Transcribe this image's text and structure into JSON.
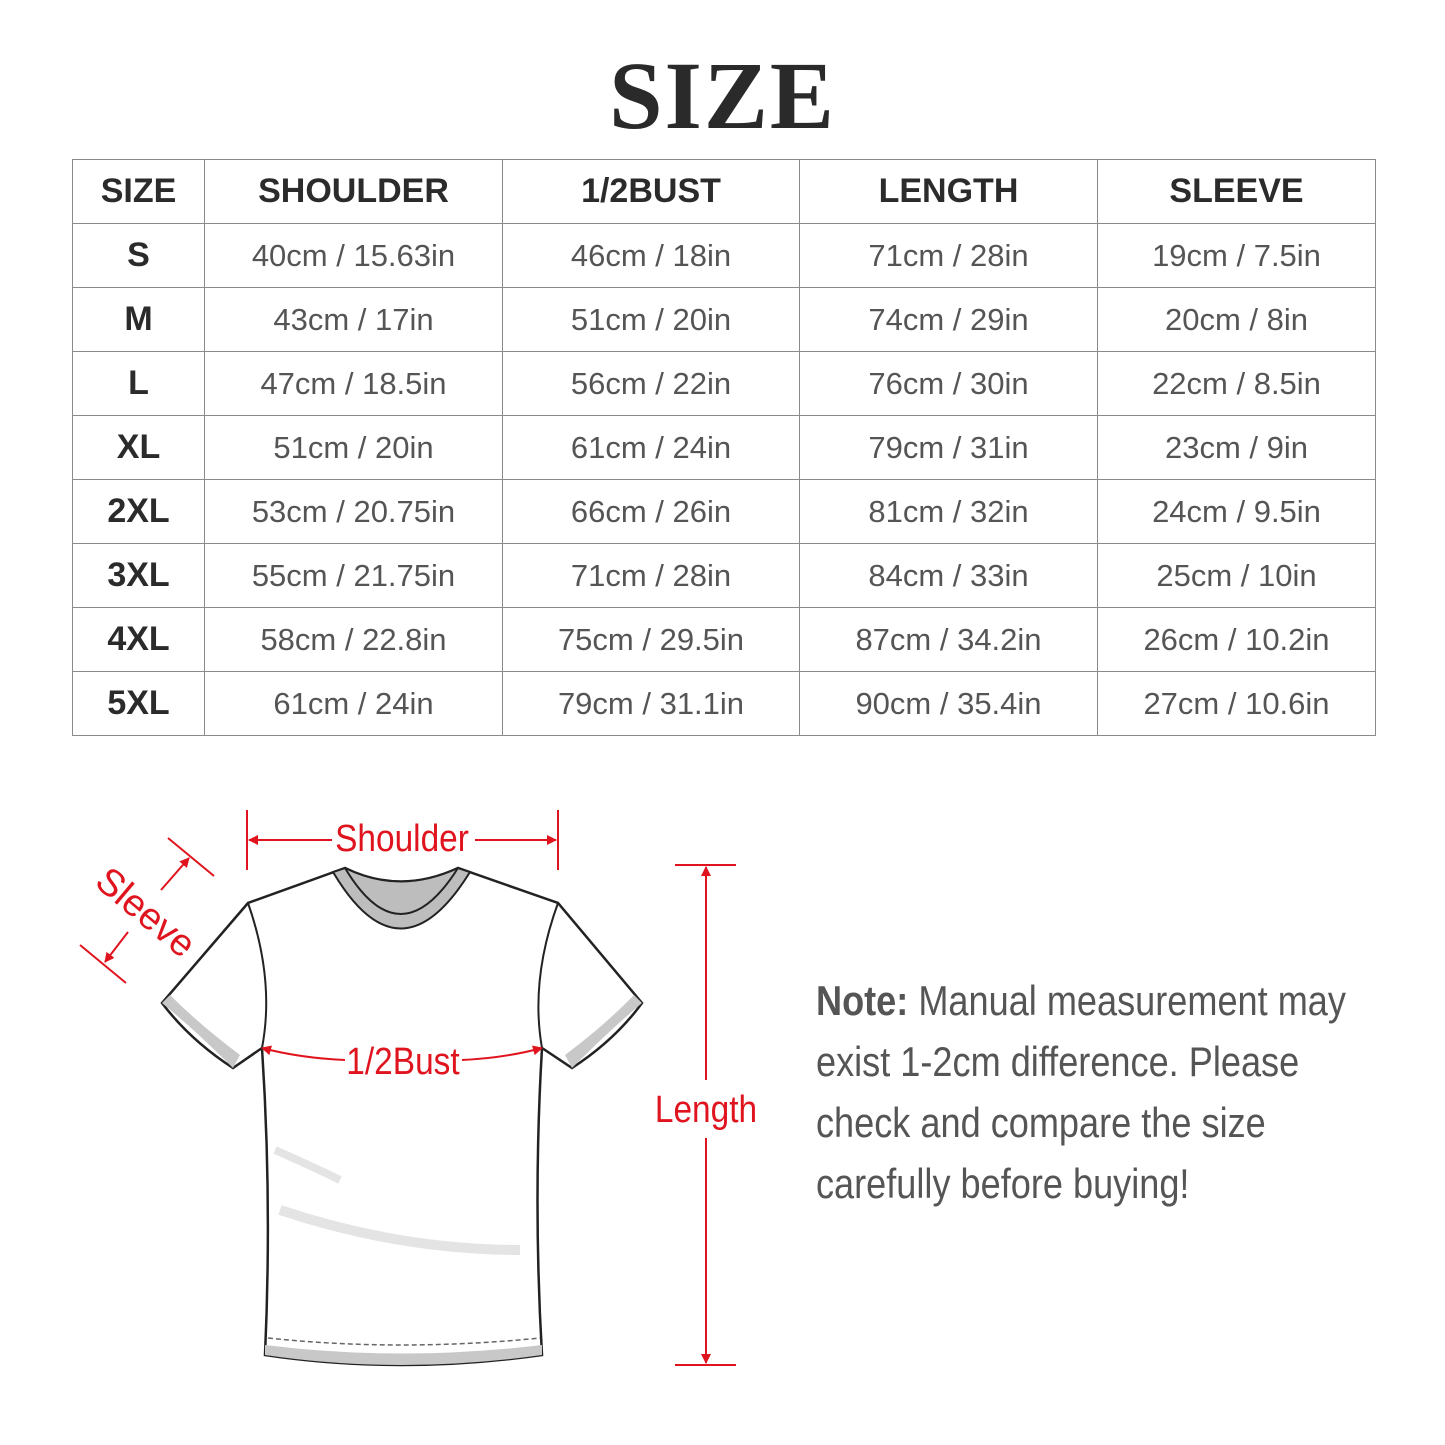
{
  "title": "SIZE",
  "table": {
    "headers": [
      "SIZE",
      "SHOULDER",
      "1/2BUST",
      "LENGTH",
      "SLEEVE"
    ],
    "rows": [
      [
        "S",
        "40cm / 15.63in",
        "46cm / 18in",
        "71cm / 28in",
        "19cm / 7.5in"
      ],
      [
        "M",
        "43cm / 17in",
        "51cm / 20in",
        "74cm / 29in",
        "20cm / 8in"
      ],
      [
        "L",
        "47cm / 18.5in",
        "56cm / 22in",
        "76cm / 30in",
        "22cm / 8.5in"
      ],
      [
        "XL",
        "51cm / 20in",
        "61cm / 24in",
        "79cm / 31in",
        "23cm / 9in"
      ],
      [
        "2XL",
        "53cm / 20.75in",
        "66cm / 26in",
        "81cm / 32in",
        "24cm / 9.5in"
      ],
      [
        "3XL",
        "55cm / 21.75in",
        "71cm / 28in",
        "84cm / 33in",
        "25cm / 10in"
      ],
      [
        "4XL",
        "58cm / 22.8in",
        "75cm / 29.5in",
        "87cm / 34.2in",
        "26cm / 10.2in"
      ],
      [
        "5XL",
        "61cm / 24in",
        "79cm / 31.1in",
        "90cm / 35.4in",
        "27cm / 10.6in"
      ]
    ]
  },
  "diagram": {
    "shoulder_label": "Shoulder",
    "sleeve_label": "Sleeve",
    "bust_label": "1/2Bust",
    "length_label": "Length",
    "annotation_color": "#e0141e"
  },
  "note": {
    "prefix": "Note:",
    "lines": [
      "Manual measurement may",
      "exist 1-2cm difference. Please",
      "check and compare the size",
      "carefully before buying!"
    ]
  }
}
